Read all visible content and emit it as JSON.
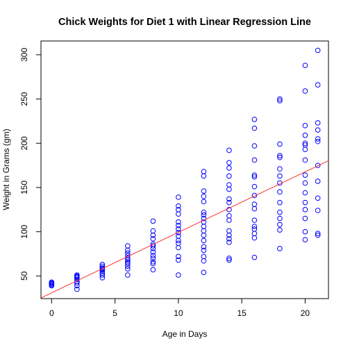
{
  "chart_data": {
    "type": "scatter",
    "title": "Chick Weights for Diet 1 with Linear Regression Line",
    "xlabel": "Age in Days",
    "ylabel": "Weight in Grams (gm)",
    "xlim": [
      -0.84,
      21.84
    ],
    "ylim": [
      24.4,
      315.6
    ],
    "xticks": [
      0,
      5,
      10,
      15,
      20
    ],
    "yticks": [
      50,
      100,
      150,
      200,
      250,
      300
    ],
    "point_color": "#0000ff",
    "line_color": "#ff3030",
    "regression": {
      "intercept": 30.9,
      "slope": 6.84
    },
    "points": [
      [
        0,
        39
      ],
      [
        0,
        40
      ],
      [
        0,
        41
      ],
      [
        0,
        42
      ],
      [
        0,
        43
      ],
      [
        2,
        35
      ],
      [
        2,
        39
      ],
      [
        2,
        42
      ],
      [
        2,
        44
      ],
      [
        2,
        46
      ],
      [
        2,
        48
      ],
      [
        2,
        49
      ],
      [
        2,
        50
      ],
      [
        2,
        51
      ],
      [
        4,
        48
      ],
      [
        4,
        51
      ],
      [
        4,
        53
      ],
      [
        4,
        55
      ],
      [
        4,
        57
      ],
      [
        4,
        58
      ],
      [
        4,
        59
      ],
      [
        4,
        61
      ],
      [
        4,
        63
      ],
      [
        6,
        51
      ],
      [
        6,
        58
      ],
      [
        6,
        61
      ],
      [
        6,
        64
      ],
      [
        6,
        66
      ],
      [
        6,
        68
      ],
      [
        6,
        70
      ],
      [
        6,
        73
      ],
      [
        6,
        76
      ],
      [
        6,
        79
      ],
      [
        6,
        84
      ],
      [
        8,
        57
      ],
      [
        8,
        64
      ],
      [
        8,
        66
      ],
      [
        8,
        70
      ],
      [
        8,
        73
      ],
      [
        8,
        77
      ],
      [
        8,
        81
      ],
      [
        8,
        84
      ],
      [
        8,
        86
      ],
      [
        8,
        92
      ],
      [
        8,
        96
      ],
      [
        8,
        101
      ],
      [
        8,
        112
      ],
      [
        10,
        51
      ],
      [
        10,
        68
      ],
      [
        10,
        72
      ],
      [
        10,
        82
      ],
      [
        10,
        87
      ],
      [
        10,
        90
      ],
      [
        10,
        95
      ],
      [
        10,
        99
      ],
      [
        10,
        103
      ],
      [
        10,
        107
      ],
      [
        10,
        111
      ],
      [
        10,
        120
      ],
      [
        10,
        125
      ],
      [
        10,
        129
      ],
      [
        10,
        139
      ],
      [
        12,
        54
      ],
      [
        12,
        67
      ],
      [
        12,
        72
      ],
      [
        12,
        79
      ],
      [
        12,
        83
      ],
      [
        12,
        90
      ],
      [
        12,
        96
      ],
      [
        12,
        101
      ],
      [
        12,
        106
      ],
      [
        12,
        111
      ],
      [
        12,
        115
      ],
      [
        12,
        119
      ],
      [
        12,
        122
      ],
      [
        12,
        134
      ],
      [
        12,
        140
      ],
      [
        12,
        146
      ],
      [
        12,
        163
      ],
      [
        12,
        168
      ],
      [
        14,
        68
      ],
      [
        14,
        70
      ],
      [
        14,
        88
      ],
      [
        14,
        92
      ],
      [
        14,
        96
      ],
      [
        14,
        101
      ],
      [
        14,
        113
      ],
      [
        14,
        118
      ],
      [
        14,
        125
      ],
      [
        14,
        133
      ],
      [
        14,
        137
      ],
      [
        14,
        148
      ],
      [
        14,
        153
      ],
      [
        14,
        163
      ],
      [
        14,
        172
      ],
      [
        14,
        178
      ],
      [
        14,
        192
      ],
      [
        16,
        71
      ],
      [
        16,
        93
      ],
      [
        16,
        98
      ],
      [
        16,
        103
      ],
      [
        16,
        106
      ],
      [
        16,
        113
      ],
      [
        16,
        126
      ],
      [
        16,
        131
      ],
      [
        16,
        141
      ],
      [
        16,
        151
      ],
      [
        16,
        162
      ],
      [
        16,
        164
      ],
      [
        16,
        181
      ],
      [
        16,
        197
      ],
      [
        16,
        217
      ],
      [
        16,
        227
      ],
      [
        18,
        81
      ],
      [
        18,
        102
      ],
      [
        18,
        108
      ],
      [
        18,
        115
      ],
      [
        18,
        122
      ],
      [
        18,
        133
      ],
      [
        18,
        145
      ],
      [
        18,
        155
      ],
      [
        18,
        163
      ],
      [
        18,
        171
      ],
      [
        18,
        184
      ],
      [
        18,
        186
      ],
      [
        18,
        199
      ],
      [
        18,
        248
      ],
      [
        18,
        250
      ],
      [
        20,
        91
      ],
      [
        20,
        100
      ],
      [
        20,
        115
      ],
      [
        20,
        125
      ],
      [
        20,
        133
      ],
      [
        20,
        144
      ],
      [
        20,
        155
      ],
      [
        20,
        164
      ],
      [
        20,
        181
      ],
      [
        20,
        193
      ],
      [
        20,
        198
      ],
      [
        20,
        200
      ],
      [
        20,
        209
      ],
      [
        20,
        220
      ],
      [
        20,
        259
      ],
      [
        20,
        288
      ],
      [
        21,
        96
      ],
      [
        21,
        98
      ],
      [
        21,
        124
      ],
      [
        21,
        138
      ],
      [
        21,
        157
      ],
      [
        21,
        175
      ],
      [
        21,
        202
      ],
      [
        21,
        205
      ],
      [
        21,
        215
      ],
      [
        21,
        223
      ],
      [
        21,
        266
      ],
      [
        21,
        305
      ]
    ]
  }
}
